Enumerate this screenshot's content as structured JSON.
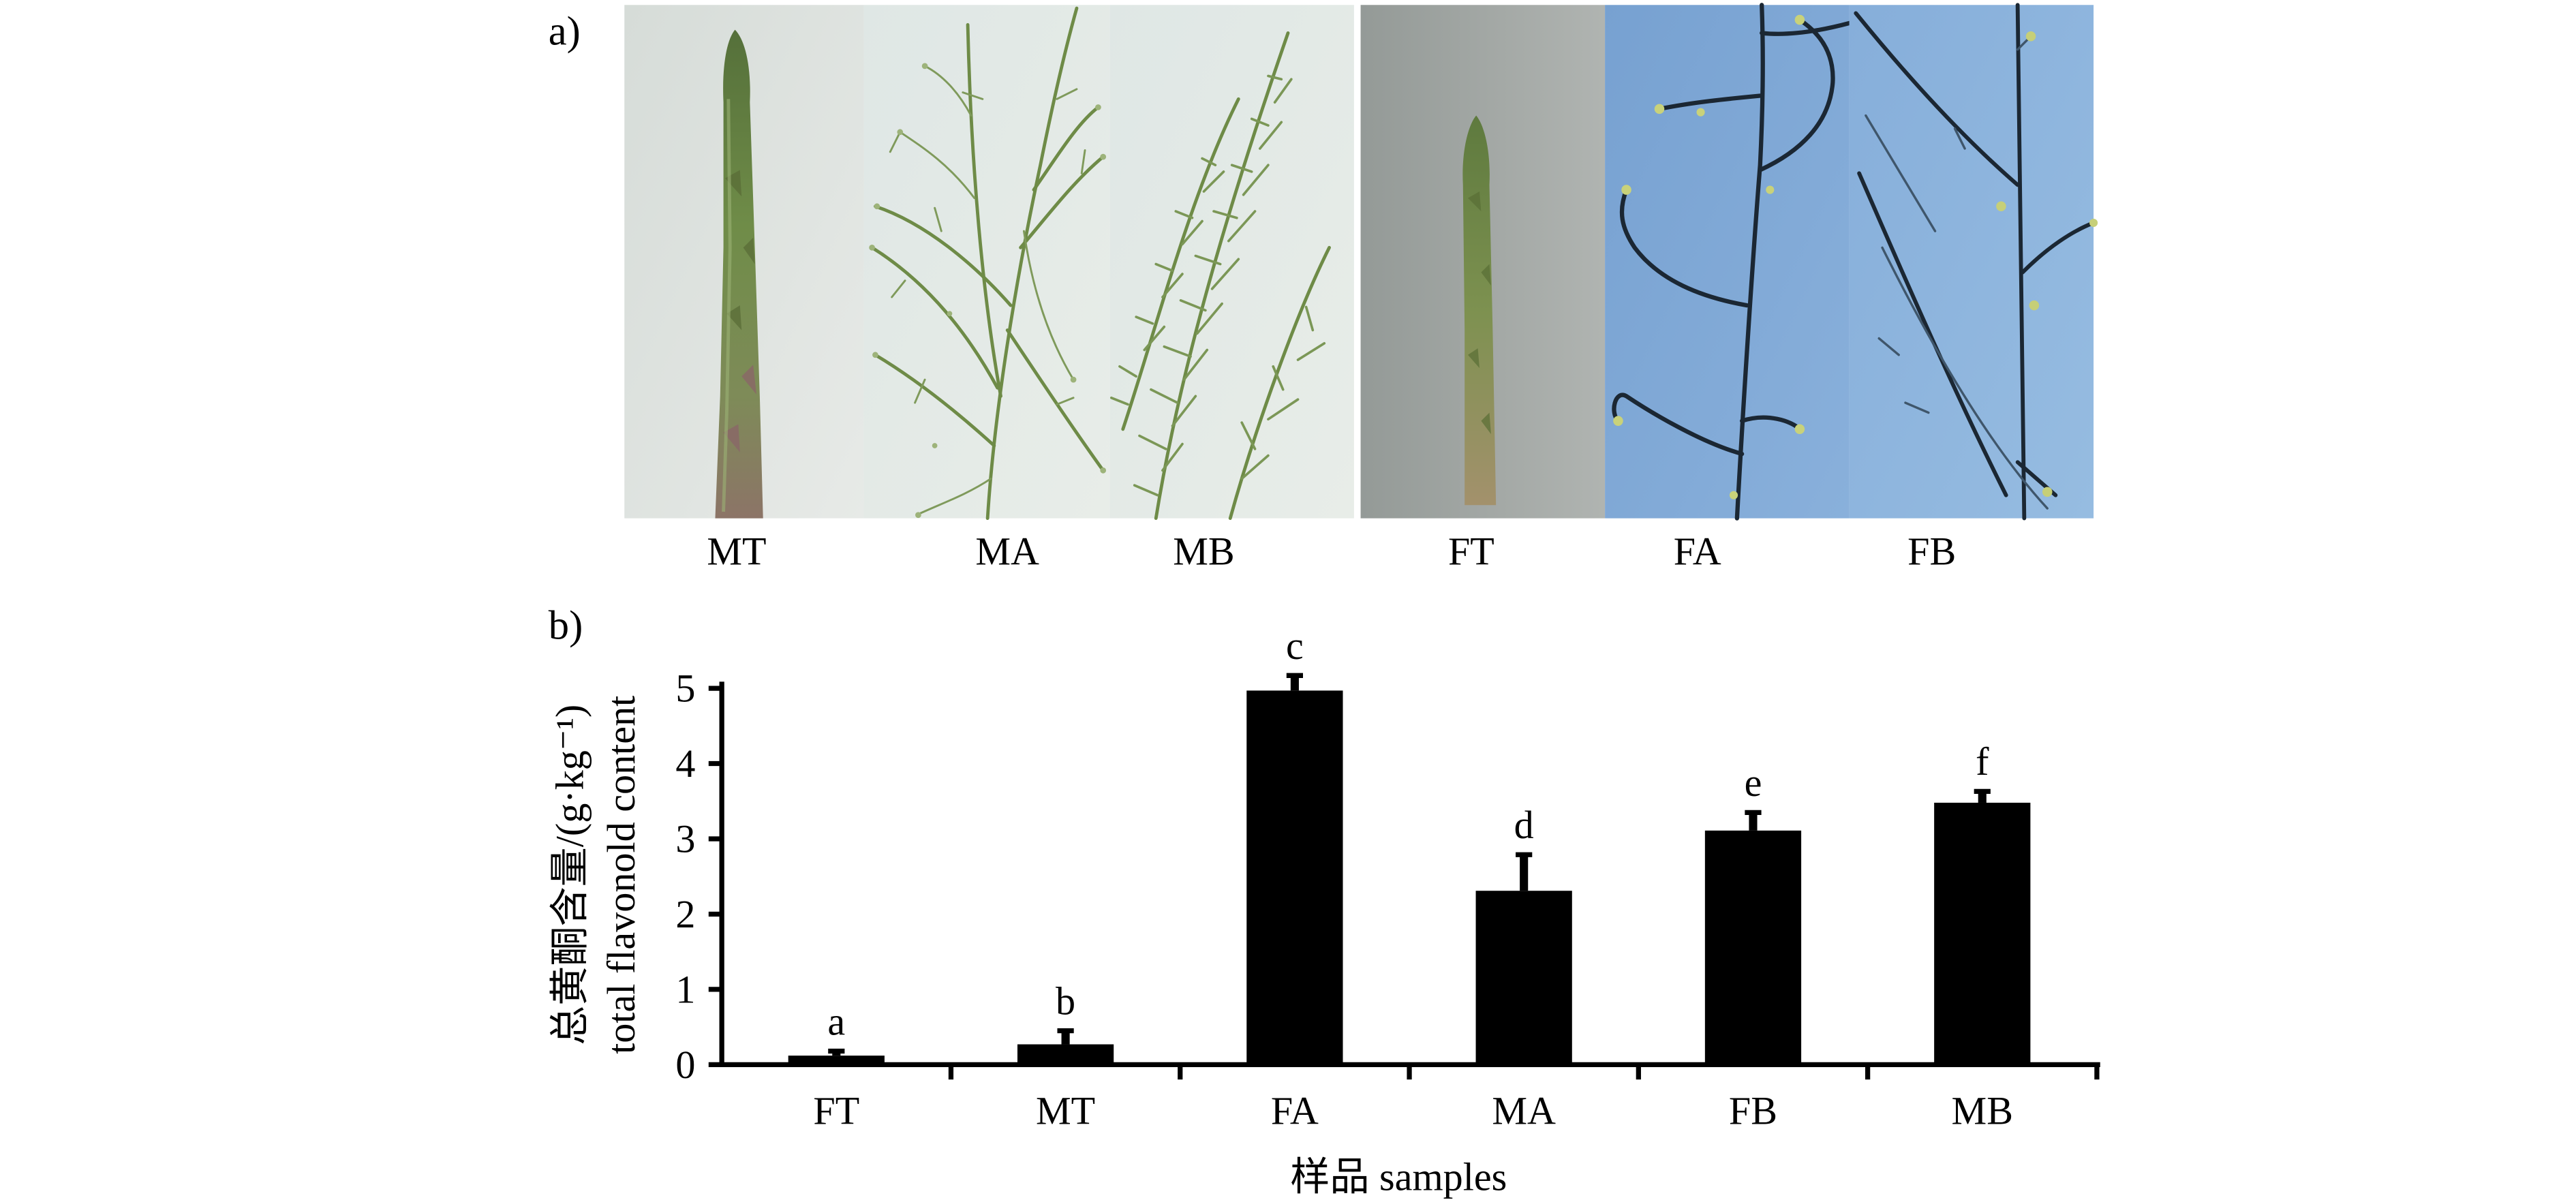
{
  "panel_a": {
    "label": "a)",
    "photos": [
      {
        "label": "MT"
      },
      {
        "label": "MA"
      },
      {
        "label": "MB"
      },
      {
        "label": "FT"
      },
      {
        "label": "FA"
      },
      {
        "label": "FB"
      }
    ]
  },
  "panel_b": {
    "label": "b)"
  },
  "chart_data": {
    "type": "bar",
    "categories": [
      "FT",
      "MT",
      "FA",
      "MA",
      "FB",
      "MB"
    ],
    "values": [
      0.12,
      0.27,
      4.97,
      2.31,
      3.11,
      3.48
    ],
    "errors": [
      0.06,
      0.18,
      0.2,
      0.48,
      0.24,
      0.15
    ],
    "significance_letters": [
      "a",
      "b",
      "c",
      "d",
      "e",
      "f"
    ],
    "ylabel": [
      "总黄酮含量/(g·kg⁻¹)",
      "total flavonold content"
    ],
    "xlabel": "样品 samples",
    "ylim": [
      0,
      5
    ],
    "yticks": [
      0,
      1,
      2,
      3,
      4,
      5
    ],
    "grid": false,
    "legend": "none",
    "bar_color": "#000000"
  }
}
